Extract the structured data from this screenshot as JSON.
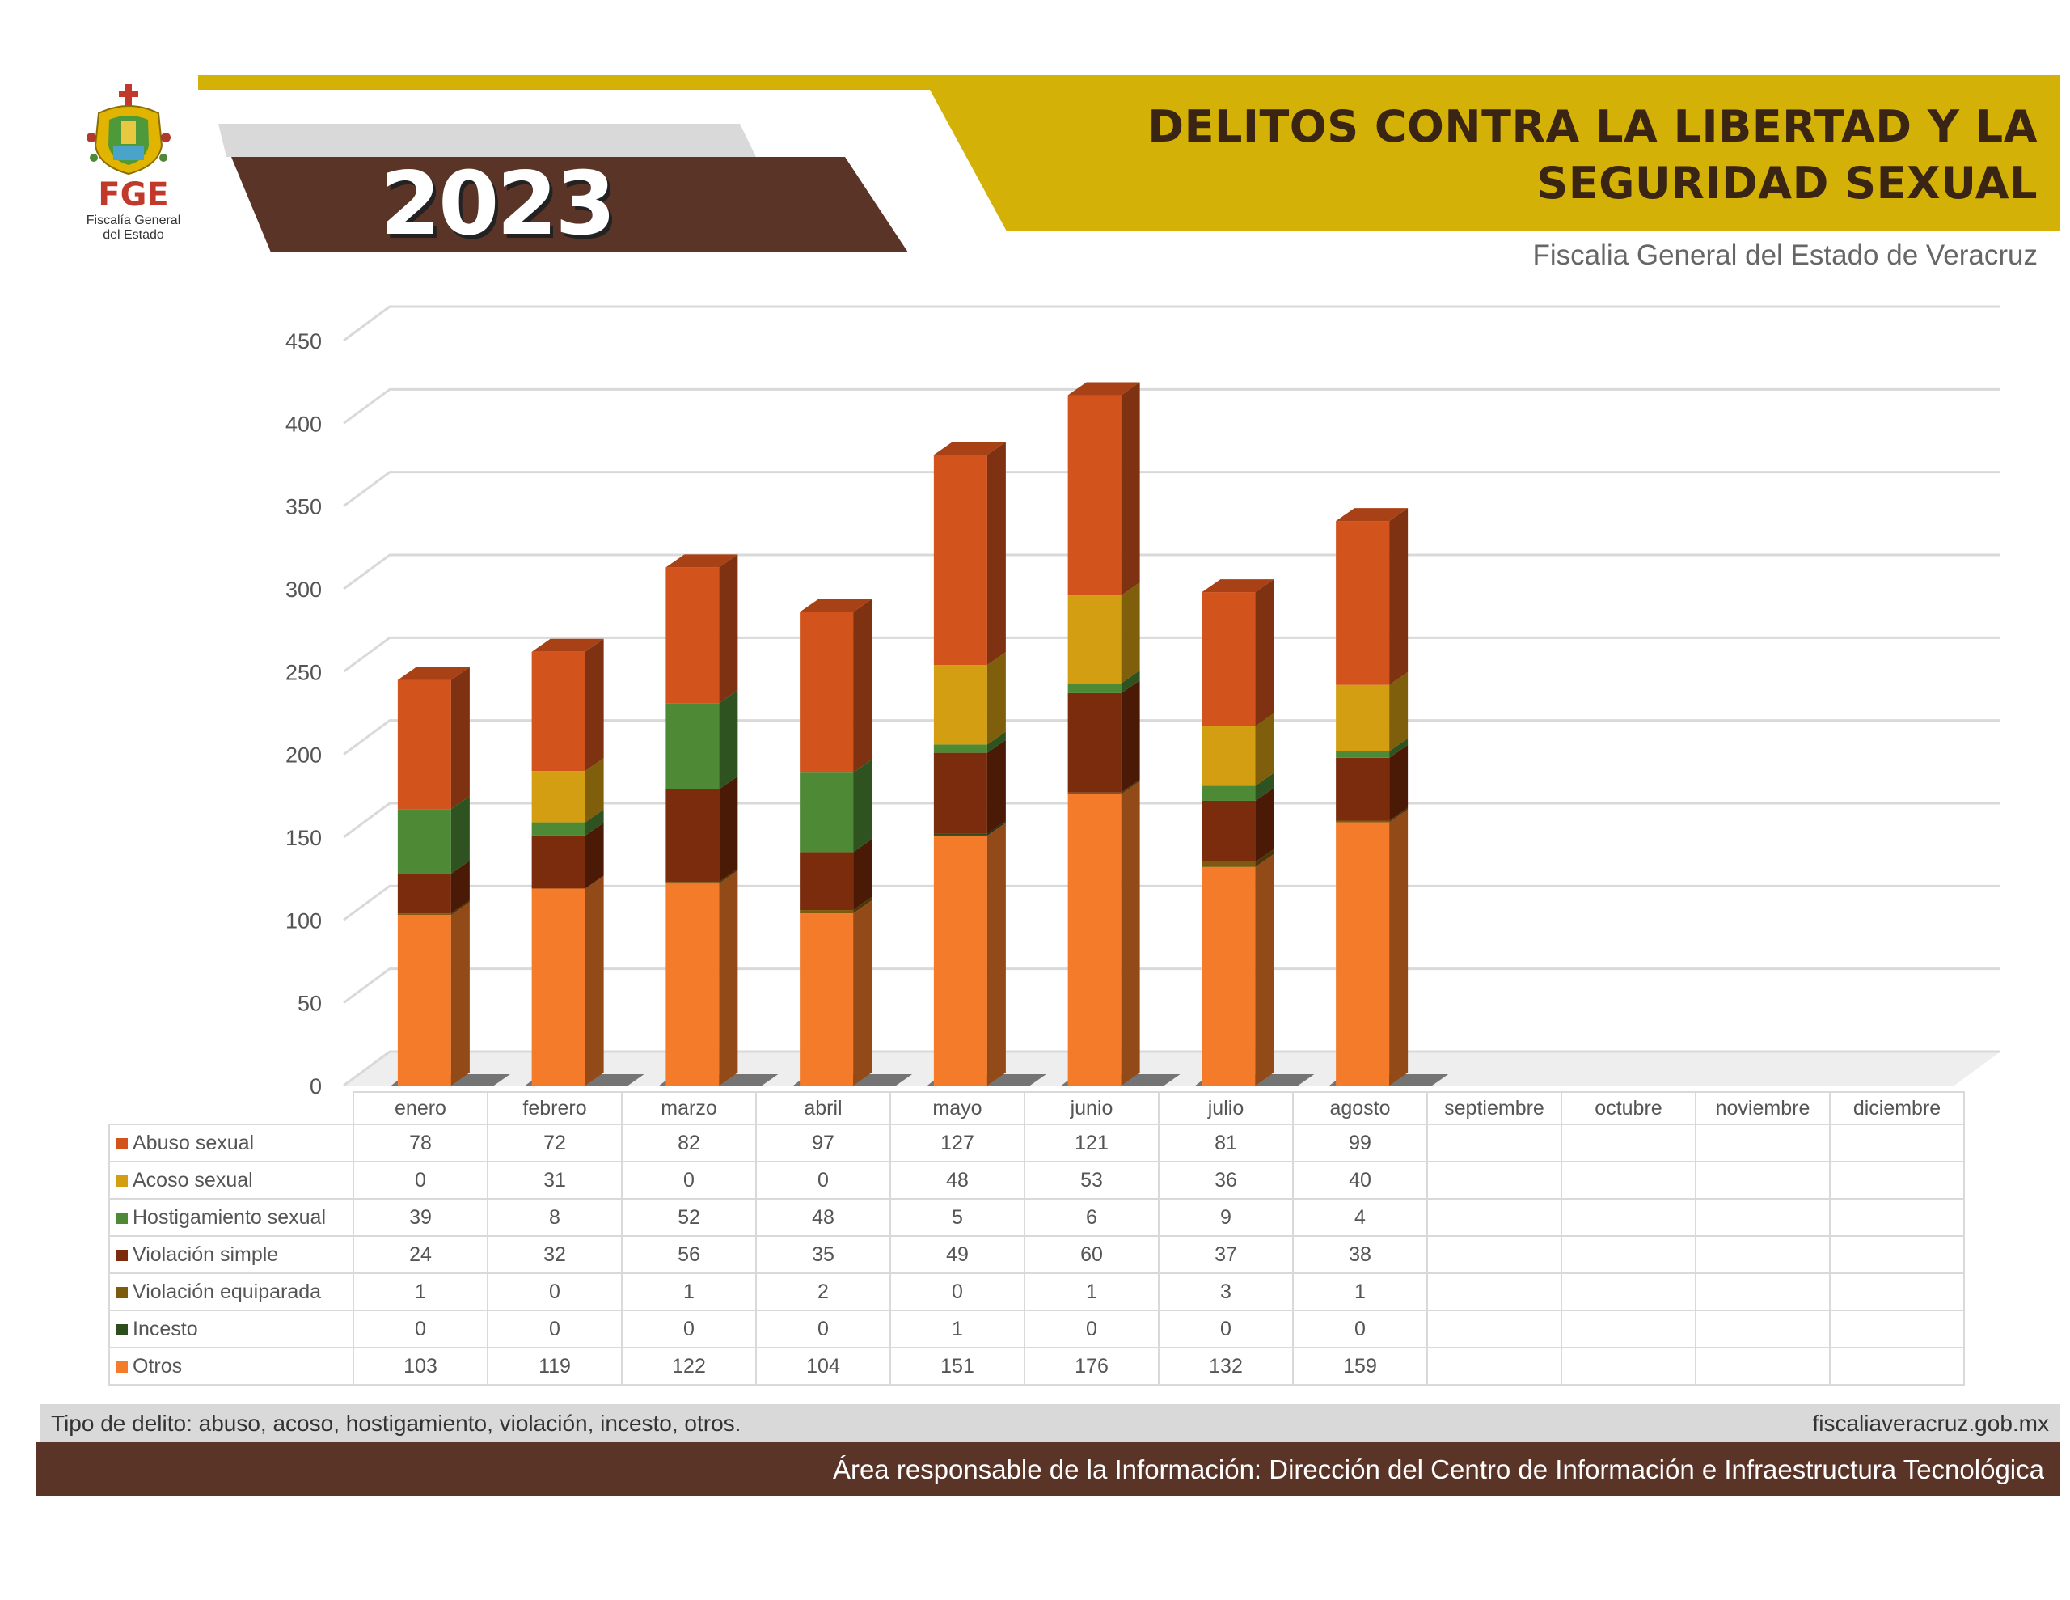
{
  "header": {
    "title_line1": "DELITOS CONTRA LA LIBERTAD Y LA",
    "title_line2": "SEGURIDAD SEXUAL",
    "year": "2023",
    "subtitle": "Fiscalia General del Estado de Veracruz",
    "logo": {
      "acronym": "FGE",
      "line1": "Fiscalía General",
      "line2": "del Estado"
    }
  },
  "colors": {
    "gold": "#d4b106",
    "brown": "#5b3428",
    "grey_band": "#d9d9d9"
  },
  "chart_data": {
    "type": "bar",
    "stacked": true,
    "style": "3d",
    "categories": [
      "enero",
      "febrero",
      "marzo",
      "abril",
      "mayo",
      "junio",
      "julio",
      "agosto",
      "septiembre",
      "octubre",
      "noviembre",
      "diciembre"
    ],
    "ylim": [
      0,
      450
    ],
    "yticks": [
      0,
      50,
      100,
      150,
      200,
      250,
      300,
      350,
      400,
      450
    ],
    "grid": true,
    "legend": "data-table",
    "series": [
      {
        "name": "Abuso sexual",
        "color": "#d2531c",
        "values": [
          78,
          72,
          82,
          97,
          127,
          121,
          81,
          99,
          null,
          null,
          null,
          null
        ]
      },
      {
        "name": "Acoso sexual",
        "color": "#d39e12",
        "values": [
          0,
          31,
          0,
          0,
          48,
          53,
          36,
          40,
          null,
          null,
          null,
          null
        ]
      },
      {
        "name": "Hostigamiento sexual",
        "color": "#4e8a36",
        "values": [
          39,
          8,
          52,
          48,
          5,
          6,
          9,
          4,
          null,
          null,
          null,
          null
        ]
      },
      {
        "name": "Violación simple",
        "color": "#7b2c0c",
        "values": [
          24,
          32,
          56,
          35,
          49,
          60,
          37,
          38,
          null,
          null,
          null,
          null
        ]
      },
      {
        "name": "Violación equiparada",
        "color": "#7d5a0c",
        "values": [
          1,
          0,
          1,
          2,
          0,
          1,
          3,
          1,
          null,
          null,
          null,
          null
        ]
      },
      {
        "name": "Incesto",
        "color": "#2e4d1f",
        "values": [
          0,
          0,
          0,
          0,
          1,
          0,
          0,
          0,
          null,
          null,
          null,
          null
        ]
      },
      {
        "name": "Otros",
        "color": "#f47b2a",
        "values": [
          103,
          119,
          122,
          104,
          151,
          176,
          132,
          159,
          null,
          null,
          null,
          null
        ]
      }
    ]
  },
  "footer": {
    "note": "Tipo de delito: abuso, acoso, hostigamiento, violación, incesto, otros.",
    "website": "fiscaliaveracruz.gob.mx",
    "responsible": "Área responsable de la Información: Dirección del Centro de Información e Infraestructura Tecnológica"
  }
}
